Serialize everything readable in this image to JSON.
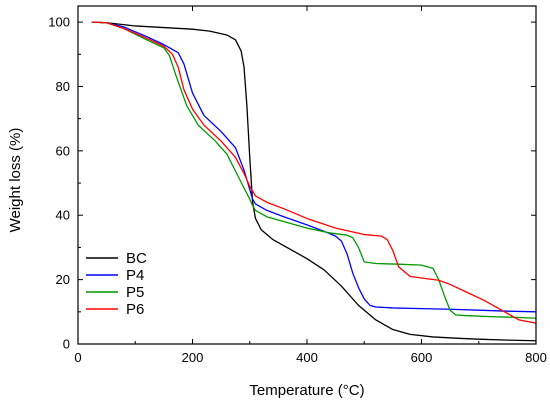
{
  "chart_data": {
    "type": "line",
    "xlabel": "Temperature (°C)",
    "ylabel": "Weight loss (%)",
    "xlim": [
      0,
      800
    ],
    "ylim": [
      0,
      105
    ],
    "xticks": [
      0,
      200,
      400,
      600,
      800
    ],
    "yticks": [
      0,
      20,
      40,
      60,
      80,
      100
    ],
    "grid": false,
    "legend_position": "bottom-left",
    "series": [
      {
        "name": "BC",
        "color": "#000000",
        "x": [
          25,
          50,
          100,
          150,
          200,
          230,
          260,
          275,
          285,
          290,
          295,
          300,
          305,
          310,
          320,
          340,
          370,
          400,
          430,
          460,
          490,
          520,
          550,
          580,
          620,
          660,
          700,
          750,
          800
        ],
        "y": [
          100,
          99.8,
          98.8,
          98.3,
          97.8,
          97.2,
          96.0,
          94.5,
          91.0,
          86.0,
          74.0,
          58.0,
          44.0,
          39.0,
          35.5,
          32.5,
          29.5,
          26.5,
          23.0,
          18.0,
          12.0,
          7.5,
          4.5,
          3.0,
          2.2,
          1.8,
          1.5,
          1.2,
          1.0
        ]
      },
      {
        "name": "P4",
        "color": "#0000ff",
        "x": [
          25,
          50,
          80,
          120,
          150,
          175,
          185,
          200,
          220,
          250,
          275,
          290,
          300,
          305,
          310,
          330,
          360,
          400,
          430,
          450,
          460,
          470,
          480,
          490,
          500,
          510,
          520,
          550,
          600,
          650,
          700,
          750,
          800
        ],
        "y": [
          100,
          99.8,
          98.5,
          95.5,
          93.0,
          90.5,
          87.0,
          78.0,
          71.0,
          66.0,
          61.0,
          54.0,
          48.0,
          45.0,
          43.5,
          41.5,
          39.5,
          37.0,
          35.0,
          33.5,
          32.0,
          28.0,
          22.0,
          17.5,
          14.0,
          12.0,
          11.5,
          11.2,
          11.0,
          10.8,
          10.5,
          10.2,
          10.0
        ]
      },
      {
        "name": "P5",
        "color": "#009900",
        "x": [
          25,
          50,
          80,
          120,
          150,
          160,
          170,
          190,
          210,
          240,
          260,
          280,
          300,
          305,
          310,
          330,
          360,
          400,
          440,
          470,
          480,
          490,
          500,
          520,
          560,
          600,
          620,
          630,
          640,
          650,
          660,
          680,
          720,
          760,
          800
        ],
        "y": [
          100,
          99.8,
          98.0,
          94.5,
          92.0,
          89.5,
          84.0,
          74.0,
          68.0,
          63.0,
          59.0,
          52.0,
          45.0,
          43.0,
          41.5,
          39.5,
          38.0,
          36.0,
          34.5,
          33.8,
          33.0,
          30.0,
          25.5,
          25.0,
          24.8,
          24.5,
          23.5,
          20.0,
          15.0,
          10.5,
          9.0,
          8.8,
          8.5,
          8.3,
          8.0
        ]
      },
      {
        "name": "P6",
        "color": "#ff0000",
        "x": [
          25,
          50,
          80,
          120,
          150,
          165,
          175,
          185,
          200,
          220,
          250,
          275,
          290,
          300,
          305,
          310,
          330,
          360,
          400,
          450,
          500,
          530,
          540,
          550,
          560,
          580,
          600,
          630,
          650,
          680,
          710,
          740,
          770,
          800
        ],
        "y": [
          100,
          99.8,
          98.0,
          95.0,
          92.5,
          90.0,
          86.0,
          79.0,
          73.0,
          68.0,
          63.0,
          58.0,
          53.0,
          49.0,
          47.5,
          46.0,
          44.0,
          42.0,
          39.0,
          36.0,
          34.0,
          33.5,
          32.5,
          29.0,
          24.0,
          21.0,
          20.5,
          19.8,
          18.5,
          16.0,
          13.5,
          10.5,
          7.5,
          6.5
        ]
      }
    ]
  }
}
